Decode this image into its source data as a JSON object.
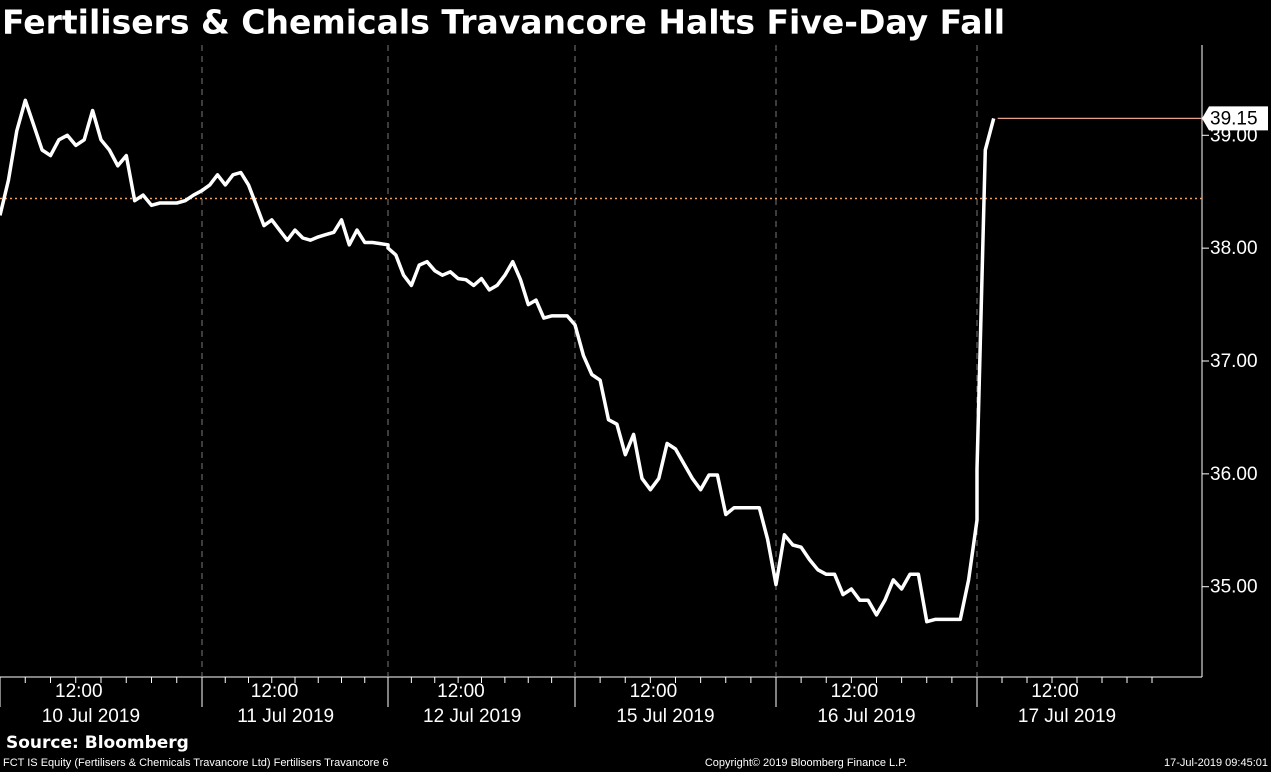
{
  "chart_data": {
    "type": "line",
    "title": "Fertilisers & Chemicals Travancore Halts Five-Day Fall",
    "color": "#ffffff",
    "days": [
      {
        "date": "10 Jul 2019",
        "time_label": "12:00",
        "values": [
          38.29,
          38.6,
          39.04,
          39.31,
          39.09,
          38.87,
          38.82,
          38.96,
          39.0,
          38.91,
          38.96,
          39.22,
          38.96,
          38.87,
          38.73,
          38.82,
          38.42,
          38.47,
          38.38,
          38.4,
          38.4,
          38.4,
          38.42,
          38.47,
          38.51
        ]
      },
      {
        "date": "11 Jul 2019",
        "time_label": "12:00",
        "values": [
          38.51,
          38.56,
          38.65,
          38.56,
          38.65,
          38.67,
          38.56,
          38.38,
          38.2,
          38.25,
          38.16,
          38.07,
          38.16,
          38.09,
          38.07,
          38.1,
          38.12,
          38.14,
          38.25,
          38.03,
          38.16,
          38.05,
          38.05,
          38.04,
          38.03
        ]
      },
      {
        "date": "12 Jul 2019",
        "time_label": "12:00",
        "values": [
          38.0,
          37.94,
          37.76,
          37.67,
          37.85,
          37.88,
          37.8,
          37.76,
          37.79,
          37.73,
          37.72,
          37.67,
          37.73,
          37.63,
          37.67,
          37.76,
          37.88,
          37.72,
          37.5,
          37.54,
          37.38,
          37.4,
          37.4,
          37.4,
          37.32
        ]
      },
      {
        "date": "15 Jul 2019",
        "time_label": "12:00",
        "values": [
          37.32,
          37.05,
          36.88,
          36.83,
          36.48,
          36.44,
          36.17,
          36.35,
          35.96,
          35.86,
          35.96,
          36.27,
          36.22,
          36.09,
          35.96,
          35.86,
          35.99,
          35.99,
          35.64,
          35.7,
          35.7,
          35.7,
          35.7,
          35.42,
          35.02
        ]
      },
      {
        "date": "16 Jul 2019",
        "time_label": "12:00",
        "values": [
          35.02,
          35.46,
          35.37,
          35.35,
          35.24,
          35.15,
          35.11,
          35.11,
          34.93,
          34.98,
          34.88,
          34.88,
          34.75,
          34.88,
          35.06,
          34.98,
          35.11,
          35.11,
          34.69,
          34.71,
          34.71,
          34.71,
          34.71,
          35.06,
          35.59
        ]
      },
      {
        "date": "17 Jul 2019",
        "time_label": "12:00",
        "values": [
          36.04,
          38.87,
          39.15
        ]
      }
    ],
    "last_price_color": "#e8a08a",
    "reference_line": {
      "value": 38.44,
      "color": "#f0a060",
      "style": "dotted"
    },
    "ylim": [
      34.2,
      39.8
    ],
    "yticks": [
      {
        "value": 35,
        "label": "35.00"
      },
      {
        "value": 36,
        "label": "36.00"
      },
      {
        "value": 37,
        "label": "37.00"
      },
      {
        "value": 38,
        "label": "38.00"
      },
      {
        "value": 39,
        "label": "39.00"
      }
    ],
    "source": "Source: Bloomberg",
    "footer_left": "FCT IS Equity (Fertilisers & Chemicals Travancore Ltd) Fertilisers Travancore 6",
    "footer_center": "Copyright© 2019 Bloomberg Finance L.P.",
    "footer_right": "17-Jul-2019 09:45:01"
  }
}
